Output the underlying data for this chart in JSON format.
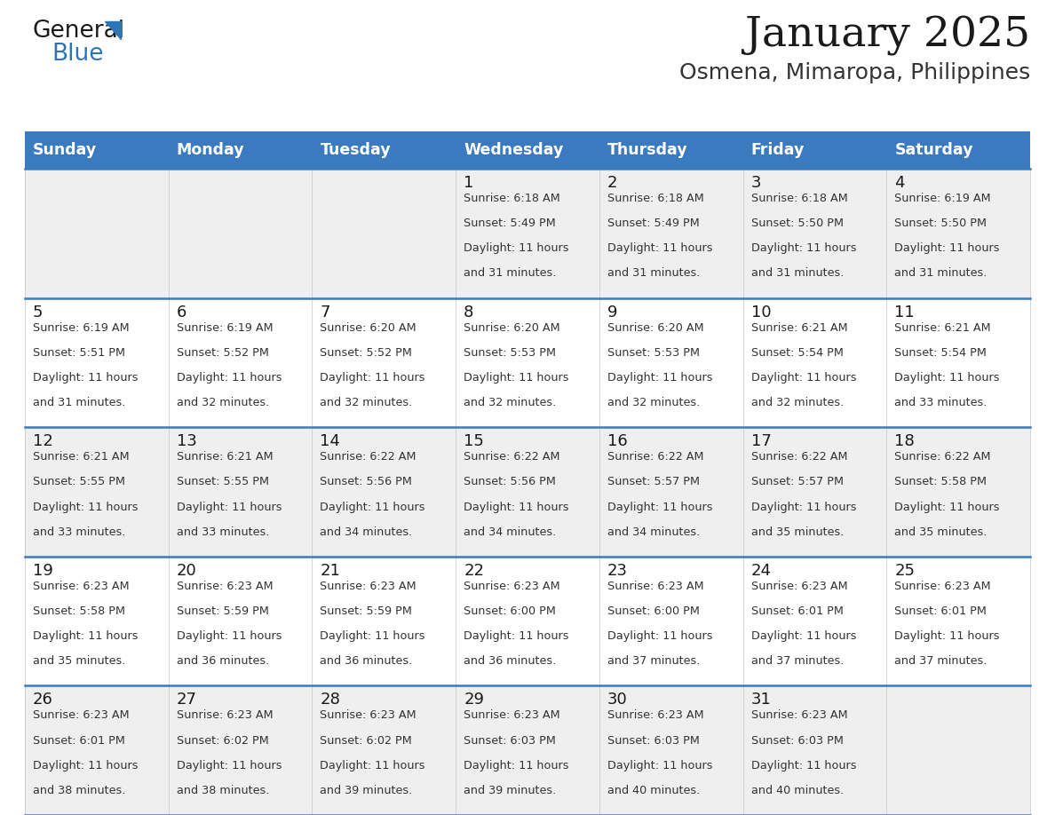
{
  "title": "January 2025",
  "subtitle": "Osmena, Mimaropa, Philippines",
  "header_color": "#3a7abf",
  "header_text_color": "#ffffff",
  "cell_bg_light": "#efefef",
  "cell_bg_white": "#ffffff",
  "row_line_color": "#3a7abf",
  "days_of_week": [
    "Sunday",
    "Monday",
    "Tuesday",
    "Wednesday",
    "Thursday",
    "Friday",
    "Saturday"
  ],
  "calendar_data": [
    [
      {
        "day": "",
        "sunrise": "",
        "sunset": "",
        "daylight": ""
      },
      {
        "day": "",
        "sunrise": "",
        "sunset": "",
        "daylight": ""
      },
      {
        "day": "",
        "sunrise": "",
        "sunset": "",
        "daylight": ""
      },
      {
        "day": "1",
        "sunrise": "Sunrise: 6:18 AM",
        "sunset": "Sunset: 5:49 PM",
        "daylight": "Daylight: 11 hours\nand 31 minutes."
      },
      {
        "day": "2",
        "sunrise": "Sunrise: 6:18 AM",
        "sunset": "Sunset: 5:49 PM",
        "daylight": "Daylight: 11 hours\nand 31 minutes."
      },
      {
        "day": "3",
        "sunrise": "Sunrise: 6:18 AM",
        "sunset": "Sunset: 5:50 PM",
        "daylight": "Daylight: 11 hours\nand 31 minutes."
      },
      {
        "day": "4",
        "sunrise": "Sunrise: 6:19 AM",
        "sunset": "Sunset: 5:50 PM",
        "daylight": "Daylight: 11 hours\nand 31 minutes."
      }
    ],
    [
      {
        "day": "5",
        "sunrise": "Sunrise: 6:19 AM",
        "sunset": "Sunset: 5:51 PM",
        "daylight": "Daylight: 11 hours\nand 31 minutes."
      },
      {
        "day": "6",
        "sunrise": "Sunrise: 6:19 AM",
        "sunset": "Sunset: 5:52 PM",
        "daylight": "Daylight: 11 hours\nand 32 minutes."
      },
      {
        "day": "7",
        "sunrise": "Sunrise: 6:20 AM",
        "sunset": "Sunset: 5:52 PM",
        "daylight": "Daylight: 11 hours\nand 32 minutes."
      },
      {
        "day": "8",
        "sunrise": "Sunrise: 6:20 AM",
        "sunset": "Sunset: 5:53 PM",
        "daylight": "Daylight: 11 hours\nand 32 minutes."
      },
      {
        "day": "9",
        "sunrise": "Sunrise: 6:20 AM",
        "sunset": "Sunset: 5:53 PM",
        "daylight": "Daylight: 11 hours\nand 32 minutes."
      },
      {
        "day": "10",
        "sunrise": "Sunrise: 6:21 AM",
        "sunset": "Sunset: 5:54 PM",
        "daylight": "Daylight: 11 hours\nand 32 minutes."
      },
      {
        "day": "11",
        "sunrise": "Sunrise: 6:21 AM",
        "sunset": "Sunset: 5:54 PM",
        "daylight": "Daylight: 11 hours\nand 33 minutes."
      }
    ],
    [
      {
        "day": "12",
        "sunrise": "Sunrise: 6:21 AM",
        "sunset": "Sunset: 5:55 PM",
        "daylight": "Daylight: 11 hours\nand 33 minutes."
      },
      {
        "day": "13",
        "sunrise": "Sunrise: 6:21 AM",
        "sunset": "Sunset: 5:55 PM",
        "daylight": "Daylight: 11 hours\nand 33 minutes."
      },
      {
        "day": "14",
        "sunrise": "Sunrise: 6:22 AM",
        "sunset": "Sunset: 5:56 PM",
        "daylight": "Daylight: 11 hours\nand 34 minutes."
      },
      {
        "day": "15",
        "sunrise": "Sunrise: 6:22 AM",
        "sunset": "Sunset: 5:56 PM",
        "daylight": "Daylight: 11 hours\nand 34 minutes."
      },
      {
        "day": "16",
        "sunrise": "Sunrise: 6:22 AM",
        "sunset": "Sunset: 5:57 PM",
        "daylight": "Daylight: 11 hours\nand 34 minutes."
      },
      {
        "day": "17",
        "sunrise": "Sunrise: 6:22 AM",
        "sunset": "Sunset: 5:57 PM",
        "daylight": "Daylight: 11 hours\nand 35 minutes."
      },
      {
        "day": "18",
        "sunrise": "Sunrise: 6:22 AM",
        "sunset": "Sunset: 5:58 PM",
        "daylight": "Daylight: 11 hours\nand 35 minutes."
      }
    ],
    [
      {
        "day": "19",
        "sunrise": "Sunrise: 6:23 AM",
        "sunset": "Sunset: 5:58 PM",
        "daylight": "Daylight: 11 hours\nand 35 minutes."
      },
      {
        "day": "20",
        "sunrise": "Sunrise: 6:23 AM",
        "sunset": "Sunset: 5:59 PM",
        "daylight": "Daylight: 11 hours\nand 36 minutes."
      },
      {
        "day": "21",
        "sunrise": "Sunrise: 6:23 AM",
        "sunset": "Sunset: 5:59 PM",
        "daylight": "Daylight: 11 hours\nand 36 minutes."
      },
      {
        "day": "22",
        "sunrise": "Sunrise: 6:23 AM",
        "sunset": "Sunset: 6:00 PM",
        "daylight": "Daylight: 11 hours\nand 36 minutes."
      },
      {
        "day": "23",
        "sunrise": "Sunrise: 6:23 AM",
        "sunset": "Sunset: 6:00 PM",
        "daylight": "Daylight: 11 hours\nand 37 minutes."
      },
      {
        "day": "24",
        "sunrise": "Sunrise: 6:23 AM",
        "sunset": "Sunset: 6:01 PM",
        "daylight": "Daylight: 11 hours\nand 37 minutes."
      },
      {
        "day": "25",
        "sunrise": "Sunrise: 6:23 AM",
        "sunset": "Sunset: 6:01 PM",
        "daylight": "Daylight: 11 hours\nand 37 minutes."
      }
    ],
    [
      {
        "day": "26",
        "sunrise": "Sunrise: 6:23 AM",
        "sunset": "Sunset: 6:01 PM",
        "daylight": "Daylight: 11 hours\nand 38 minutes."
      },
      {
        "day": "27",
        "sunrise": "Sunrise: 6:23 AM",
        "sunset": "Sunset: 6:02 PM",
        "daylight": "Daylight: 11 hours\nand 38 minutes."
      },
      {
        "day": "28",
        "sunrise": "Sunrise: 6:23 AM",
        "sunset": "Sunset: 6:02 PM",
        "daylight": "Daylight: 11 hours\nand 39 minutes."
      },
      {
        "day": "29",
        "sunrise": "Sunrise: 6:23 AM",
        "sunset": "Sunset: 6:03 PM",
        "daylight": "Daylight: 11 hours\nand 39 minutes."
      },
      {
        "day": "30",
        "sunrise": "Sunrise: 6:23 AM",
        "sunset": "Sunset: 6:03 PM",
        "daylight": "Daylight: 11 hours\nand 40 minutes."
      },
      {
        "day": "31",
        "sunrise": "Sunrise: 6:23 AM",
        "sunset": "Sunset: 6:03 PM",
        "daylight": "Daylight: 11 hours\nand 40 minutes."
      },
      {
        "day": "",
        "sunrise": "",
        "sunset": "",
        "daylight": ""
      }
    ]
  ],
  "logo_triangle_color": "#2e75b6",
  "fig_width": 11.88,
  "fig_height": 9.18,
  "dpi": 100
}
